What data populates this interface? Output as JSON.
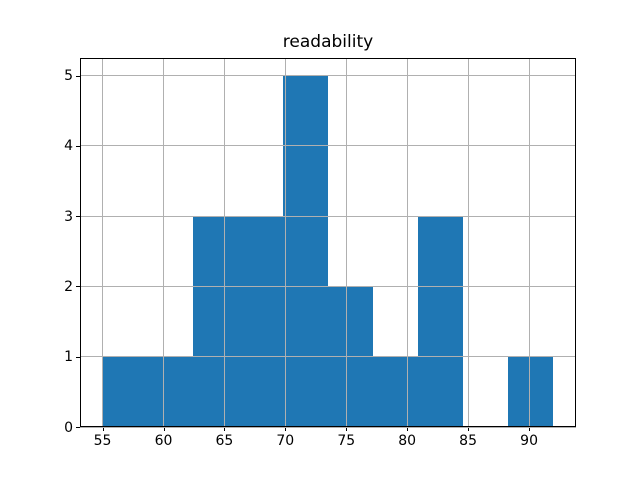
{
  "figure": {
    "title": "readability"
  },
  "chart_data": {
    "type": "bar",
    "subtype": "histogram",
    "title": "readability",
    "xlabel": "",
    "ylabel": "",
    "bin_edges": [
      55.0,
      58.7,
      62.4,
      66.1,
      69.8,
      73.5,
      77.2,
      80.9,
      84.6,
      88.3,
      92.0
    ],
    "counts": [
      1,
      1,
      3,
      3,
      5,
      2,
      1,
      3,
      0,
      1
    ],
    "xticks": [
      55,
      60,
      65,
      70,
      75,
      80,
      85,
      90
    ],
    "yticks": [
      0,
      1,
      2,
      3,
      4,
      5
    ],
    "xlim": [
      53.15,
      93.85
    ],
    "ylim": [
      0,
      5.25
    ],
    "grid": true,
    "legend_position": "none",
    "bar_color": "#1f77b4",
    "grid_color": "#b0b0b0",
    "axis_color": "#000000",
    "background_color": "#ffffff"
  }
}
